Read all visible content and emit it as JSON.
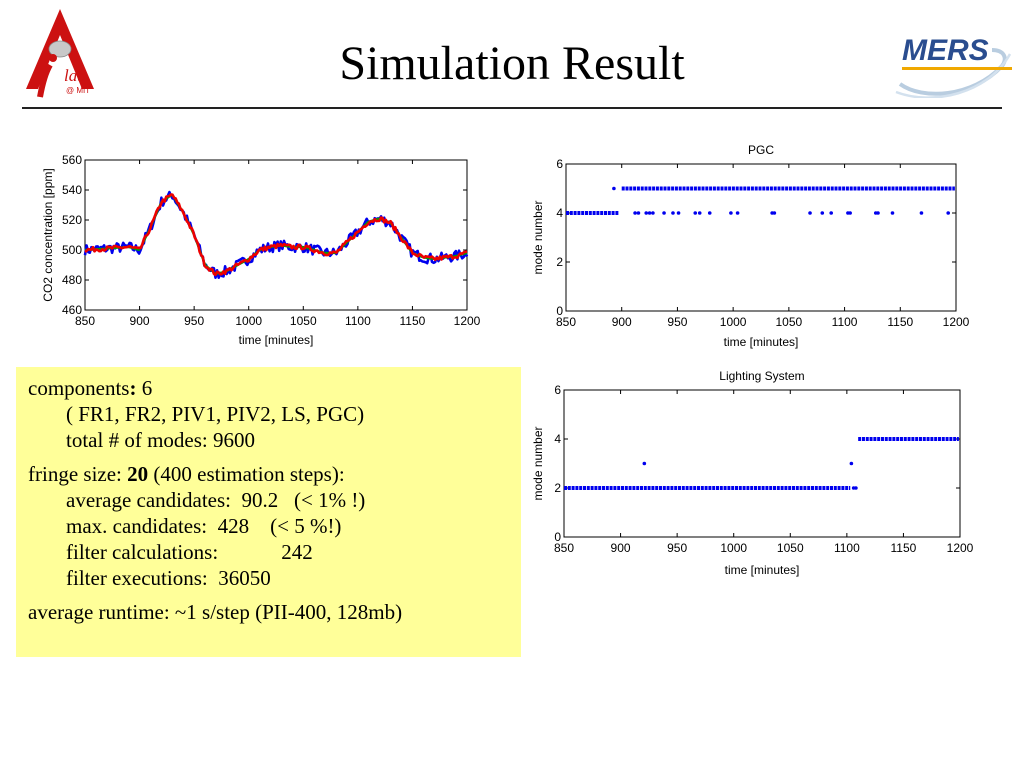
{
  "slide": {
    "title": "Simulation Result",
    "logo_left_text": "lab",
    "logo_left_sub": "@ MIT",
    "logo_right_text": "MERS"
  },
  "info": {
    "components_label": "components",
    "components_colon": ":",
    "components_value": " 6",
    "components_list": "( FR1, FR2, PIV1, PIV2, LS, PGC)",
    "modes": "total # of modes: 9600",
    "fringe_label": "fringe size: ",
    "fringe_value": "20",
    "fringe_rest": " (400 estimation steps):",
    "avg_candidates": "average candidates:  90.2   (< 1% !)",
    "max_candidates": "max. candidates:  428    (< 5 %!)",
    "filter_calcs": "filter calculations:            242",
    "filter_execs": "filter executions:  36050",
    "runtime": "average runtime: ~1 s/step (PII-400, 128mb)"
  },
  "colors": {
    "series_blue": "#0000ee",
    "series_red": "#ee0000",
    "series_green": "#00a000",
    "info_bg": "#ffff99",
    "logo_red": "#cc1111",
    "logo_blue": "#2a4d8f",
    "logo_orange": "#f0a800"
  },
  "chart_data": [
    {
      "id": "co2",
      "type": "line",
      "title": "",
      "xlabel": "time [minutes]",
      "ylabel": "CO2 concentration [ppm]",
      "xlim": [
        850,
        1200
      ],
      "ylim": [
        460,
        560
      ],
      "xticks": [
        850,
        900,
        950,
        1000,
        1050,
        1100,
        1150,
        1200
      ],
      "yticks": [
        460,
        480,
        500,
        520,
        540,
        560
      ],
      "grid": false,
      "x": [
        850,
        870,
        890,
        900,
        910,
        920,
        930,
        940,
        950,
        960,
        970,
        980,
        990,
        1000,
        1010,
        1020,
        1030,
        1040,
        1050,
        1060,
        1070,
        1080,
        1090,
        1100,
        1110,
        1120,
        1130,
        1140,
        1150,
        1160,
        1170,
        1180,
        1190,
        1200
      ],
      "series": [
        {
          "values": [
            500,
            501,
            502,
            500,
            515,
            532,
            537,
            525,
            510,
            490,
            484,
            486,
            490,
            494,
            500,
            502,
            503,
            502,
            502,
            500,
            498,
            498,
            505,
            512,
            519,
            521,
            518,
            508,
            498,
            495,
            494,
            495,
            496,
            498
          ],
          "noise": 7,
          "color_key": "series_blue",
          "width": 2.6
        },
        {
          "values": [
            500,
            501,
            502,
            500,
            515,
            532,
            537,
            525,
            510,
            490,
            484,
            486,
            490,
            494,
            500,
            502,
            503,
            502,
            502,
            500,
            498,
            498,
            505,
            512,
            519,
            521,
            518,
            508,
            498,
            495,
            494,
            495,
            496,
            498
          ],
          "noise": 0,
          "color_key": "series_green",
          "width": 2.2
        },
        {
          "values": [
            500,
            501,
            502,
            500,
            515,
            532,
            537,
            525,
            510,
            490,
            484,
            486,
            490,
            494,
            500,
            502,
            503,
            502,
            502,
            500,
            498,
            498,
            505,
            512,
            519,
            521,
            518,
            508,
            498,
            495,
            494,
            495,
            496,
            498
          ],
          "noise": 3,
          "color_key": "series_red",
          "width": 2.6
        }
      ]
    },
    {
      "id": "pgc",
      "type": "scatter",
      "title": "PGC",
      "xlabel": "time [minutes]",
      "ylabel": "mode number",
      "xlim": [
        850,
        1200
      ],
      "ylim": [
        0,
        6
      ],
      "xticks": [
        850,
        900,
        950,
        1000,
        1050,
        1100,
        1150,
        1200
      ],
      "yticks": [
        0,
        2,
        4,
        6
      ],
      "grid": false,
      "segments": [
        {
          "x0": 850,
          "x1": 897,
          "y": 4
        },
        {
          "x0": 900,
          "x1": 1199,
          "y": 5
        }
      ],
      "points": [
        {
          "x": 893,
          "y": 5
        },
        {
          "x": 912,
          "y": 4
        },
        {
          "x": 915,
          "y": 4
        },
        {
          "x": 922,
          "y": 4
        },
        {
          "x": 925,
          "y": 4
        },
        {
          "x": 928,
          "y": 4
        },
        {
          "x": 938,
          "y": 4
        },
        {
          "x": 946,
          "y": 4
        },
        {
          "x": 951,
          "y": 4
        },
        {
          "x": 966,
          "y": 4
        },
        {
          "x": 970,
          "y": 4
        },
        {
          "x": 979,
          "y": 4
        },
        {
          "x": 998,
          "y": 4
        },
        {
          "x": 1004,
          "y": 4
        },
        {
          "x": 1035,
          "y": 4
        },
        {
          "x": 1037,
          "y": 4
        },
        {
          "x": 1069,
          "y": 4
        },
        {
          "x": 1080,
          "y": 4
        },
        {
          "x": 1088,
          "y": 4
        },
        {
          "x": 1103,
          "y": 4
        },
        {
          "x": 1105,
          "y": 4
        },
        {
          "x": 1128,
          "y": 4
        },
        {
          "x": 1130,
          "y": 4
        },
        {
          "x": 1143,
          "y": 4
        },
        {
          "x": 1169,
          "y": 4
        },
        {
          "x": 1193,
          "y": 4
        }
      ]
    },
    {
      "id": "ls",
      "type": "scatter",
      "title": "Lighting System",
      "xlabel": "time [minutes]",
      "ylabel": "mode number",
      "xlim": [
        850,
        1200
      ],
      "ylim": [
        0,
        6
      ],
      "xticks": [
        850,
        900,
        950,
        1000,
        1050,
        1100,
        1150,
        1200
      ],
      "yticks": [
        0,
        2,
        4,
        6
      ],
      "grid": false,
      "segments": [
        {
          "x0": 850,
          "x1": 1103,
          "y": 2
        },
        {
          "x0": 1110,
          "x1": 1199,
          "y": 4
        }
      ],
      "points": [
        {
          "x": 921,
          "y": 3
        },
        {
          "x": 1104,
          "y": 3
        },
        {
          "x": 1106,
          "y": 2
        },
        {
          "x": 1108,
          "y": 2
        }
      ]
    }
  ]
}
